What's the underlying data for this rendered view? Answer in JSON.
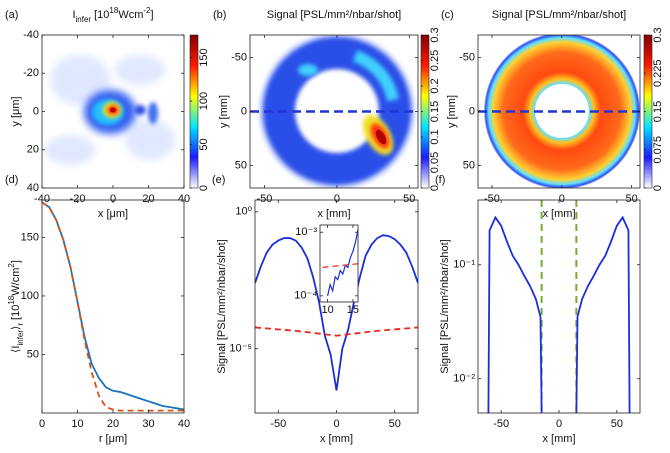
{
  "chart_data": [
    {
      "type": "heatmap",
      "label": "(a)",
      "title": [
        {
          "text": "I"
        },
        {
          "text": "infer",
          "sub": true
        },
        {
          "text": " [10"
        },
        {
          "text": "18",
          "sup": true
        },
        {
          "text": "Wcm"
        },
        {
          "text": "-2",
          "sup": true
        },
        {
          "text": "]"
        }
      ],
      "xlabel": "x [μm]",
      "ylabel": "y [μm]",
      "xlim": [
        -40,
        40
      ],
      "xticks": [
        -40,
        -20,
        0,
        20,
        40
      ],
      "ylim": [
        -40,
        40
      ],
      "yreverse": true,
      "yticks": [
        -40,
        -20,
        0,
        20,
        40
      ],
      "clim": [
        0,
        176
      ],
      "cticks": [
        0,
        50,
        100,
        150
      ],
      "colormap": [
        "#ffffff",
        "#1a1aff",
        "#00e5ff",
        "#ffff00",
        "#ff1a00",
        "#800000"
      ]
    },
    {
      "type": "heatmap",
      "label": "(b)",
      "title": "Signal [PSL/mm²/nbar/shot]",
      "xlabel": "x [mm]",
      "ylabel": "y [mm]",
      "xlim": [
        -60,
        56
      ],
      "xticks": [
        -50,
        0,
        50
      ],
      "ylim": [
        -71,
        71
      ],
      "yreverse": true,
      "yticks": [
        -50,
        0,
        50
      ],
      "clim": [
        0,
        0.3
      ],
      "cticks": [
        0,
        0.05,
        0.1,
        0.15,
        0.2,
        0.25,
        0.3
      ],
      "colormap": [
        "#ffffff",
        "#1a1aff",
        "#00e5ff",
        "#ffff00",
        "#ff1a00",
        "#800000"
      ],
      "hline": 0,
      "hline_color": "#1f35d6"
    },
    {
      "type": "heatmap",
      "label": "(c)",
      "title": "Signal [PSL/mm²/nbar/shot]",
      "xlabel": "x [mm]",
      "ylabel": "y [mm]",
      "xlim": [
        -60,
        56
      ],
      "xticks": [
        -50,
        0,
        50
      ],
      "ylim": [
        -71,
        71
      ],
      "yreverse": true,
      "yticks": [
        -50,
        0,
        50
      ],
      "clim": [
        0,
        0.3
      ],
      "cticks": [
        0,
        0.075,
        0.15,
        0.225,
        0.3
      ],
      "colormap": [
        "#ffffff",
        "#1a1aff",
        "#00e5ff",
        "#ffff00",
        "#ff1a00",
        "#800000"
      ],
      "hline": 0,
      "hline_color": "#1f35d6"
    },
    {
      "type": "line",
      "label": "(d)",
      "xlabel": "r [μm]",
      "ylabel": [
        {
          "text": "⟨I"
        },
        {
          "text": "infer",
          "sub": true
        },
        {
          "text": "⟩"
        },
        {
          "text": "r",
          "sub": true
        },
        {
          "text": " [10"
        },
        {
          "text": "18",
          "sup": true
        },
        {
          "text": "W/cm"
        },
        {
          "text": "2",
          "sup": true
        },
        {
          "text": "]"
        }
      ],
      "xlim": [
        0,
        40
      ],
      "xticks": [
        0,
        10,
        20,
        30,
        40
      ],
      "ylim": [
        0,
        182
      ],
      "yticks": [
        50,
        100,
        150
      ],
      "x": [
        0,
        2,
        4,
        6,
        8,
        10,
        12,
        14,
        16,
        18,
        20,
        22,
        24,
        26,
        28,
        30,
        32,
        34,
        36,
        38,
        40
      ],
      "series": [
        {
          "color": "#1b75bb",
          "values": [
            180,
            176,
            165,
            148,
            125,
            95,
            65,
            42,
            30,
            22,
            19,
            18,
            16,
            14,
            12,
            10,
            8,
            6,
            5,
            4,
            3
          ]
        },
        {
          "color": "#d95319",
          "dashed": true,
          "values": [
            180,
            176,
            165,
            148,
            125,
            95,
            62,
            35,
            15,
            5,
            3,
            2,
            2,
            2,
            2,
            2,
            2,
            2,
            2,
            2,
            2
          ]
        }
      ]
    },
    {
      "type": "line",
      "label": "(e)",
      "xlabel": "x [mm]",
      "ylabel": "Signal [PSL/mm²/nbar/shot]",
      "xlim": [
        -70,
        70
      ],
      "xticks": [
        -50,
        0,
        50
      ],
      "ylim": [
        4.5e-08,
        2.7
      ],
      "ylog": true,
      "yticks": [
        {
          "value": 1,
          "label": "10⁰"
        },
        {
          "value": 1e-05,
          "label": "10⁻⁵"
        }
      ],
      "series": [
        {
          "color": "#1a2fdc",
          "x": [
            -70,
            -65,
            -60,
            -55,
            -50,
            -45,
            -40,
            -35,
            -30,
            -25,
            -20,
            -15,
            -10,
            -5,
            0,
            5,
            10,
            15,
            20,
            25,
            30,
            35,
            40,
            45,
            50,
            55,
            60,
            65,
            70
          ],
          "values": [
            0.0025,
            0.01,
            0.032,
            0.063,
            0.089,
            0.11,
            0.11,
            0.089,
            0.05,
            0.02,
            0.004,
            0.0005,
            3e-05,
            6e-06,
            3e-07,
            1e-05,
            5e-05,
            0.0005,
            0.004,
            0.025,
            0.063,
            0.11,
            0.14,
            0.13,
            0.1,
            0.063,
            0.032,
            0.01,
            0.0025
          ]
        },
        {
          "color": "#e8291c",
          "dashed": true,
          "x": [
            -70,
            -35,
            0,
            35,
            70
          ],
          "values": [
            6e-05,
            4.5e-05,
            3e-05,
            4.5e-05,
            6e-05
          ]
        }
      ]
    },
    {
      "type": "line",
      "label": "(f)",
      "xlabel": "x [mm]",
      "ylabel": "Signal [PSL/mm²/nbar/shot]",
      "xlim": [
        -70,
        70
      ],
      "xticks": [
        -50,
        0,
        50
      ],
      "ylim": [
        0.005,
        0.37
      ],
      "ylog": true,
      "yticks": [
        {
          "value": 0.01,
          "label": "10⁻²"
        },
        {
          "value": 0.1,
          "label": "10⁻¹"
        }
      ],
      "vlines": [
        -15,
        15
      ],
      "vline_color": "#77ac30",
      "x": [
        -61,
        -60,
        -55,
        -50,
        -45,
        -40,
        -35,
        -30,
        -25,
        -20,
        -16,
        -15,
        0,
        15,
        16,
        20,
        25,
        30,
        35,
        40,
        45,
        50,
        55,
        60,
        61
      ],
      "series": [
        {
          "color": "#1a2fdc",
          "values": [
            0.005,
            0.2,
            0.26,
            0.22,
            0.16,
            0.12,
            0.1,
            0.08,
            0.065,
            0.05,
            0.035,
            0.005,
            null,
            0.005,
            0.035,
            0.05,
            0.065,
            0.08,
            0.1,
            0.12,
            0.16,
            0.22,
            0.26,
            0.2,
            0.005
          ]
        }
      ]
    },
    {
      "type": "line",
      "xlim": [
        8.5,
        16
      ],
      "xticks": [
        10,
        15
      ],
      "ylim": [
        8e-05,
        0.0013
      ],
      "ylog": true,
      "yticks": [
        {
          "value": 0.0001,
          "label": "10⁻⁴"
        },
        {
          "value": 0.001,
          "label": "10⁻³"
        }
      ],
      "series": [
        {
          "color": "#1a2fdc",
          "x": [
            10,
            10.5,
            11,
            11.5,
            12,
            12.5,
            13,
            13.5,
            14,
            14.5,
            15,
            15.5,
            16
          ],
          "values": [
            0.0001,
            0.00015,
            0.00012,
            0.0002,
            0.00018,
            0.00025,
            0.00022,
            0.0003,
            0.00028,
            0.0004,
            0.0005,
            0.0007,
            0.0011
          ]
        },
        {
          "color": "#e8291c",
          "dashed": true,
          "x": [
            9,
            16
          ],
          "values": [
            0.00028,
            0.00032
          ]
        }
      ]
    }
  ]
}
